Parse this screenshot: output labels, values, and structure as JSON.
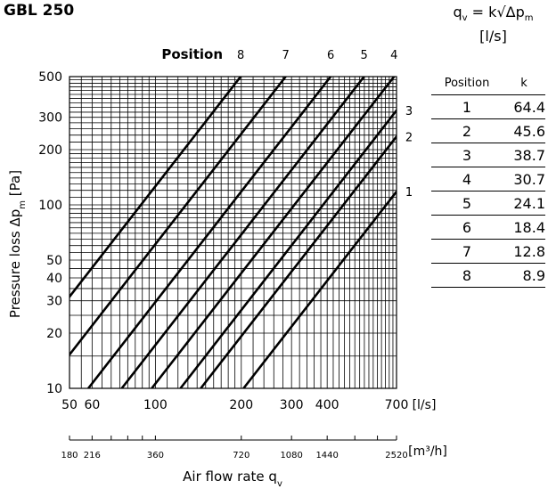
{
  "header": {
    "title": "GBL 250",
    "formula_line1": "q",
    "formula_sub1": "v",
    "formula_mid": " = k√Δp",
    "formula_sub2": "m",
    "formula_line2": "[l/s]"
  },
  "table": {
    "col_position": "Position",
    "col_k": "k",
    "rows": [
      {
        "position": "1",
        "k": "64.4"
      },
      {
        "position": "2",
        "k": "45.6"
      },
      {
        "position": "3",
        "k": "38.7"
      },
      {
        "position": "4",
        "k": "30.7"
      },
      {
        "position": "5",
        "k": "24.1"
      },
      {
        "position": "6",
        "k": "18.4"
      },
      {
        "position": "7",
        "k": "12.8"
      },
      {
        "position": "8",
        "k": "8.9"
      }
    ]
  },
  "chart_data": {
    "type": "line",
    "x_scale": "log",
    "y_scale": "log",
    "xlim": [
      50,
      700
    ],
    "ylim": [
      10,
      500
    ],
    "grid": true,
    "xlabel": "Air flow rate q",
    "xlabel_sub": "v",
    "ylabel": "Pressure loss Δp",
    "ylabel_sub": "m",
    "ylabel_unit": "[Pa]",
    "x_unit": "[l/s]",
    "x_ticks": [
      50,
      60,
      100,
      200,
      300,
      400,
      700
    ],
    "y_ticks": [
      10,
      20,
      30,
      40,
      50,
      100,
      200,
      300,
      500
    ],
    "secondary_x_unit": "[m³/h]",
    "secondary_x_ticks": [
      {
        "label": "180",
        "ls": 50
      },
      {
        "label": "216",
        "ls": 60
      },
      {
        "label": "360",
        "ls": 100
      },
      {
        "label": "720",
        "ls": 200
      },
      {
        "label": "1080",
        "ls": 300
      },
      {
        "label": "1440",
        "ls": 400
      },
      {
        "label": "2520",
        "ls": 700
      }
    ],
    "series_header": "Position",
    "series": [
      {
        "name": "1",
        "k": 64.4
      },
      {
        "name": "2",
        "k": 45.6
      },
      {
        "name": "3",
        "k": 38.7
      },
      {
        "name": "4",
        "k": 30.7
      },
      {
        "name": "5",
        "k": 24.1
      },
      {
        "name": "6",
        "k": 18.4
      },
      {
        "name": "7",
        "k": 12.8
      },
      {
        "name": "8",
        "k": 8.9
      }
    ]
  }
}
